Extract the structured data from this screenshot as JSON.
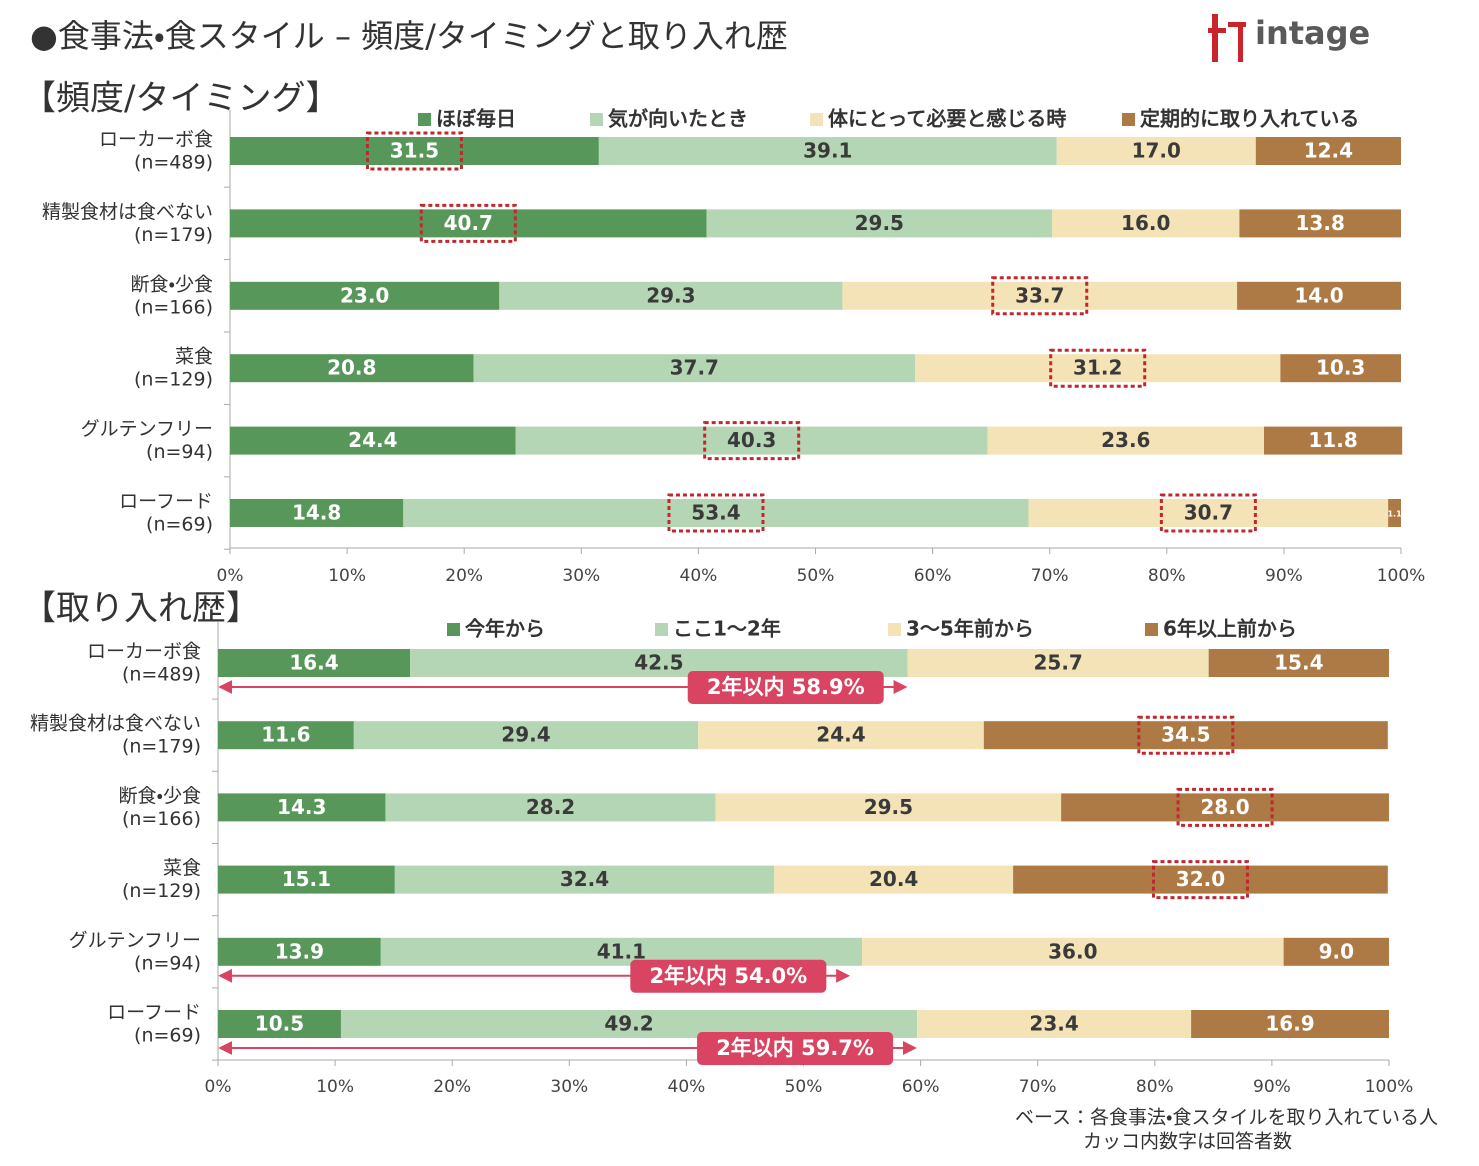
{
  "title": "●食事法・食スタイル – 頻度/タイミングと取り入れ歴",
  "logo": "intage",
  "note": [
    "ベース：各食事法・食スタイルを取り入れている人",
    "カッコ内数字は回答者数"
  ],
  "chart_data": [
    {
      "type": "bar",
      "orientation": "horizontal",
      "stacked": true,
      "title": "【頻度/タイミング】",
      "categories": [
        "ローカーボ食",
        "精製食材は食べない",
        "断食・少食",
        "菜食",
        "グルテンフリー",
        "ローフード"
      ],
      "sample_sizes": [
        "(n=489)",
        "(n=179)",
        "(n=166)",
        "(n=129)",
        "(n=94)",
        "(n=69)"
      ],
      "xlim": [
        0,
        100
      ],
      "xticks": [
        {
          "value": 0,
          "label": "0%"
        },
        {
          "value": 10,
          "label": "10%"
        },
        {
          "value": 20,
          "label": "20%"
        },
        {
          "value": 30,
          "label": "30%"
        },
        {
          "value": 40,
          "label": "40%"
        },
        {
          "value": 50,
          "label": "50%"
        },
        {
          "value": 60,
          "label": "60%"
        },
        {
          "value": 70,
          "label": "70%"
        },
        {
          "value": 80,
          "label": "80%"
        },
        {
          "value": 90,
          "label": "90%"
        },
        {
          "value": 100,
          "label": "100%"
        }
      ],
      "series": [
        {
          "name": "ほぼ毎日",
          "color": "#58975a",
          "label_color": "#ffffff",
          "values": [
            31.5,
            40.7,
            23,
            20.8,
            24.4,
            14.8
          ],
          "value_labels": [
            "31.5",
            "40.7",
            "23.0",
            "20.8",
            "24.4",
            "14.8"
          ],
          "highlight": [
            0,
            1
          ]
        },
        {
          "name": "気が向いたとき",
          "color": "#b5d6b4",
          "label_color": "#3a3a3a",
          "values": [
            39.1,
            29.5,
            29.3,
            37.7,
            40.3,
            53.4
          ],
          "value_labels": [
            "39.1",
            "29.5",
            "29.3",
            "37.7",
            "40.3",
            "53.4"
          ],
          "highlight": [
            4,
            5
          ]
        },
        {
          "name": "体にとって必要と感じる時",
          "color": "#f3e3b6",
          "label_color": "#3a3a3a",
          "values": [
            17,
            16,
            33.7,
            31.2,
            23.6,
            30.7
          ],
          "value_labels": [
            "17.0",
            "16.0",
            "33.7",
            "31.2",
            "23.6",
            "30.7"
          ],
          "highlight": [
            2,
            3,
            5
          ]
        },
        {
          "name": "定期的に取り入れている",
          "color": "#ad7a45",
          "label_color": "#ffffff",
          "values": [
            12.4,
            13.8,
            14,
            10.3,
            11.8,
            1.1
          ],
          "value_labels": [
            "12.4",
            "13.8",
            "14.0",
            "10.3",
            "11.8",
            "1.1"
          ],
          "highlight": []
        }
      ]
    },
    {
      "type": "bar",
      "orientation": "horizontal",
      "stacked": true,
      "title": "【取り入れ歴】",
      "categories": [
        "ローカーボ食",
        "精製食材は食べない",
        "断食・少食",
        "菜食",
        "グルテンフリー",
        "ローフード"
      ],
      "sample_sizes": [
        "(n=489)",
        "(n=179)",
        "(n=166)",
        "(n=129)",
        "(n=94)",
        "(n=69)"
      ],
      "xlim": [
        0,
        100
      ],
      "xticks": [
        {
          "value": 0,
          "label": "0%"
        },
        {
          "value": 10,
          "label": "10%"
        },
        {
          "value": 20,
          "label": "20%"
        },
        {
          "value": 30,
          "label": "30%"
        },
        {
          "value": 40,
          "label": "40%"
        },
        {
          "value": 50,
          "label": "50%"
        },
        {
          "value": 60,
          "label": "60%"
        },
        {
          "value": 70,
          "label": "70%"
        },
        {
          "value": 80,
          "label": "80%"
        },
        {
          "value": 90,
          "label": "90%"
        },
        {
          "value": 100,
          "label": "100%"
        }
      ],
      "series": [
        {
          "name": "今年から",
          "color": "#58975a",
          "label_color": "#ffffff",
          "values": [
            16.4,
            11.6,
            14.3,
            15.1,
            13.9,
            10.5
          ],
          "value_labels": [
            "16.4",
            "11.6",
            "14.3",
            "15.1",
            "13.9",
            "10.5"
          ],
          "highlight": []
        },
        {
          "name": "ここ1～2年",
          "color": "#b5d6b4",
          "label_color": "#3a3a3a",
          "values": [
            42.5,
            29.4,
            28.2,
            32.4,
            41.1,
            49.2
          ],
          "value_labels": [
            "42.5",
            "29.4",
            "28.2",
            "32.4",
            "41.1",
            "49.2"
          ],
          "highlight": []
        },
        {
          "name": "3～5年前から",
          "color": "#f3e3b6",
          "label_color": "#3a3a3a",
          "values": [
            25.7,
            24.4,
            29.5,
            20.4,
            36,
            23.4
          ],
          "value_labels": [
            "25.7",
            "24.4",
            "29.5",
            "20.4",
            "36.0",
            "23.4"
          ],
          "highlight": []
        },
        {
          "name": "6年以上前から",
          "color": "#ad7a45",
          "label_color": "#ffffff",
          "values": [
            15.4,
            34.5,
            28,
            32,
            9,
            16.9
          ],
          "value_labels": [
            "15.4",
            "34.5",
            "28.0",
            "32.0",
            "9.0",
            "16.9"
          ],
          "highlight": [
            1,
            2,
            3
          ]
        }
      ],
      "annotations": [
        {
          "text": "2年以内 58.9%",
          "category": 0,
          "value": 58.9
        },
        {
          "text": "2年以内 54.0%",
          "category": 4,
          "value": 54
        },
        {
          "text": "2年以内 59.7%",
          "category": 5,
          "value": 59.7
        }
      ]
    }
  ]
}
